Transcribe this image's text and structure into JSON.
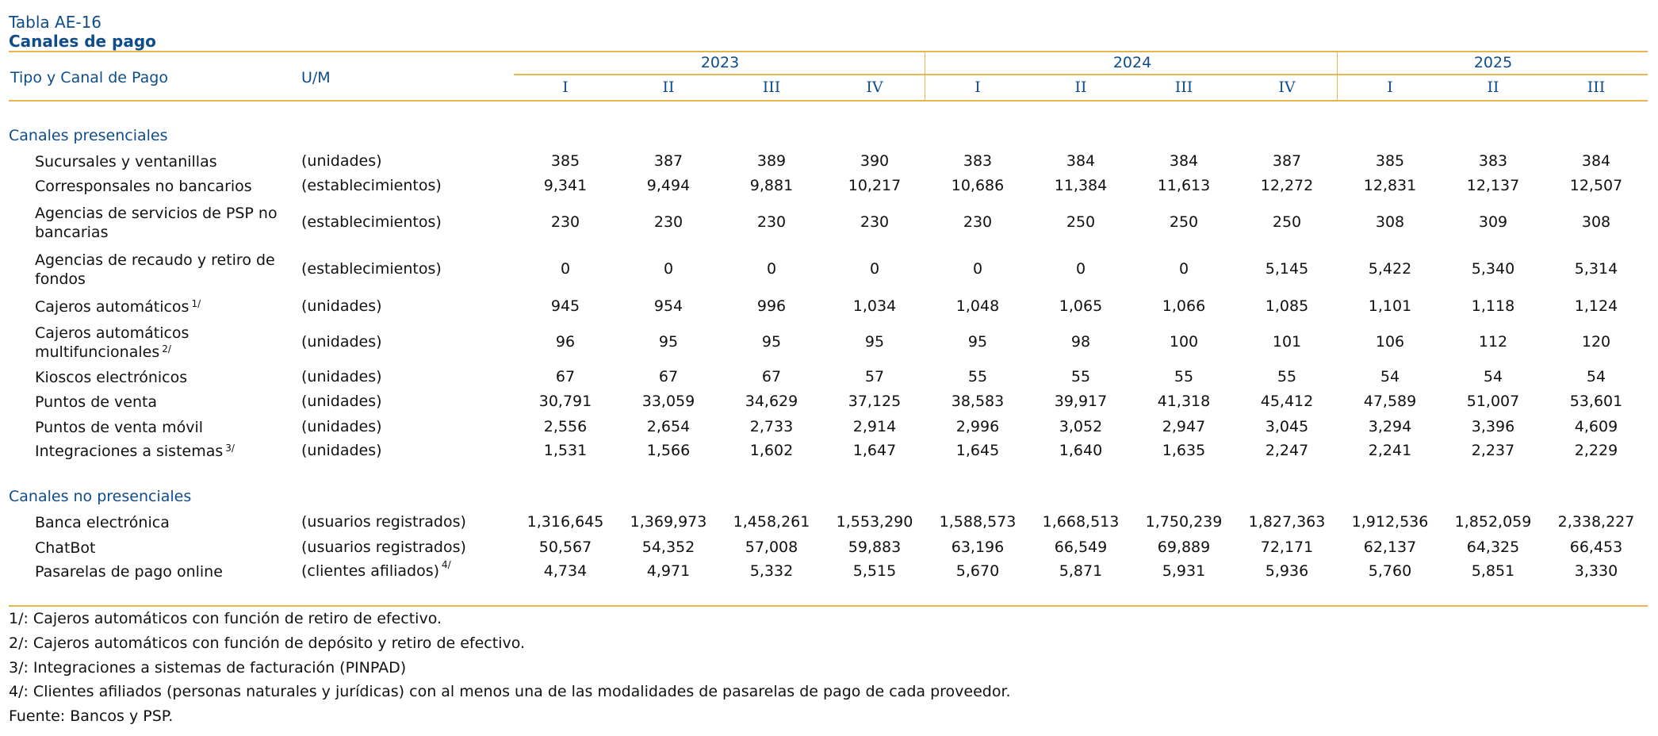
{
  "header": {
    "table_id": "Tabla AE-16",
    "title": "Canales de pago",
    "col_type": "Tipo y Canal de Pago",
    "col_um": "U/M",
    "years": [
      {
        "label": "2023",
        "quarters": [
          "I",
          "II",
          "III",
          "IV"
        ]
      },
      {
        "label": "2024",
        "quarters": [
          "I",
          "II",
          "III",
          "IV"
        ]
      },
      {
        "label": "2025",
        "quarters": [
          "I",
          "II",
          "III"
        ]
      }
    ]
  },
  "sections": [
    {
      "title": "Canales presenciales",
      "rows": [
        {
          "label": "Sucursales y ventanillas",
          "note": "",
          "um": "(unidades)",
          "um_note": "",
          "values": [
            "385",
            "387",
            "389",
            "390",
            "383",
            "384",
            "384",
            "387",
            "385",
            "383",
            "384"
          ]
        },
        {
          "label": "Corresponsales no bancarios",
          "note": "",
          "um": "(establecimientos)",
          "um_note": "",
          "values": [
            "9,341",
            "9,494",
            "9,881",
            "10,217",
            "10,686",
            "11,384",
            "11,613",
            "12,272",
            "12,831",
            "12,137",
            "12,507"
          ]
        },
        {
          "label": "Agencias de servicios de PSP no bancarias",
          "note": "",
          "um": "(establecimientos)",
          "um_note": "",
          "values": [
            "230",
            "230",
            "230",
            "230",
            "230",
            "250",
            "250",
            "250",
            "308",
            "309",
            "308"
          ]
        },
        {
          "label": "Agencias de recaudo y retiro de fondos",
          "note": "",
          "um": "(establecimientos)",
          "um_note": "",
          "values": [
            "0",
            "0",
            "0",
            "0",
            "0",
            "0",
            "0",
            "5,145",
            "5,422",
            "5,340",
            "5,314"
          ]
        },
        {
          "label": "Cajeros automáticos",
          "note": "1/",
          "um": "(unidades)",
          "um_note": "",
          "values": [
            "945",
            "954",
            "996",
            "1,034",
            "1,048",
            "1,065",
            "1,066",
            "1,085",
            "1,101",
            "1,118",
            "1,124"
          ]
        },
        {
          "label": "Cajeros automáticos multifuncionales",
          "note": "2/",
          "um": "(unidades)",
          "um_note": "",
          "values": [
            "96",
            "95",
            "95",
            "95",
            "95",
            "98",
            "100",
            "101",
            "106",
            "112",
            "120"
          ]
        },
        {
          "label": "Kioscos electrónicos",
          "note": "",
          "um": "(unidades)",
          "um_note": "",
          "values": [
            "67",
            "67",
            "67",
            "57",
            "55",
            "55",
            "55",
            "55",
            "54",
            "54",
            "54"
          ]
        },
        {
          "label": "Puntos de venta",
          "note": "",
          "um": "(unidades)",
          "um_note": "",
          "values": [
            "30,791",
            "33,059",
            "34,629",
            "37,125",
            "38,583",
            "39,917",
            "41,318",
            "45,412",
            "47,589",
            "51,007",
            "53,601"
          ]
        },
        {
          "label": "Puntos de venta móvil",
          "note": "",
          "um": "(unidades)",
          "um_note": "",
          "values": [
            "2,556",
            "2,654",
            "2,733",
            "2,914",
            "2,996",
            "3,052",
            "2,947",
            "3,045",
            "3,294",
            "3,396",
            "4,609"
          ]
        },
        {
          "label": "Integraciones a sistemas",
          "note": "3/",
          "um": "(unidades)",
          "um_note": "",
          "values": [
            "1,531",
            "1,566",
            "1,602",
            "1,647",
            "1,645",
            "1,640",
            "1,635",
            "2,247",
            "2,241",
            "2,237",
            "2,229"
          ]
        }
      ]
    },
    {
      "title": "Canales no presenciales",
      "rows": [
        {
          "label": "Banca electrónica",
          "note": "",
          "um": "(usuarios registrados)",
          "um_note": "",
          "values": [
            "1,316,645",
            "1,369,973",
            "1,458,261",
            "1,553,290",
            "1,588,573",
            "1,668,513",
            "1,750,239",
            "1,827,363",
            "1,912,536",
            "1,852,059",
            "2,338,227"
          ]
        },
        {
          "label": "ChatBot",
          "note": "",
          "um": "(usuarios registrados)",
          "um_note": "",
          "values": [
            "50,567",
            "54,352",
            "57,008",
            "59,883",
            "63,196",
            "66,549",
            "69,889",
            "72,171",
            "62,137",
            "64,325",
            "66,453"
          ]
        },
        {
          "label": "Pasarelas de pago online",
          "note": "",
          "um": "(clientes afiliados)",
          "um_note": "4/",
          "values": [
            "4,734",
            "4,971",
            "5,332",
            "5,515",
            "5,670",
            "5,871",
            "5,931",
            "5,936",
            "5,760",
            "5,851",
            "3,330"
          ]
        }
      ]
    }
  ],
  "footnotes": [
    "1/: Cajeros automáticos con función de retiro de efectivo.",
    "2/: Cajeros automáticos con función de depósito y retiro de efectivo.",
    "3/: Integraciones a sistemas de facturación (PINPAD)",
    "4/: Clientes afiliados (personas naturales y jurídicas) con al menos una de las modalidades de pasarelas de pago de cada proveedor.",
    "Fuente: Bancos y PSP."
  ],
  "colors": {
    "accent_text": "#0f4c8a",
    "rule": "#e6b64a"
  }
}
